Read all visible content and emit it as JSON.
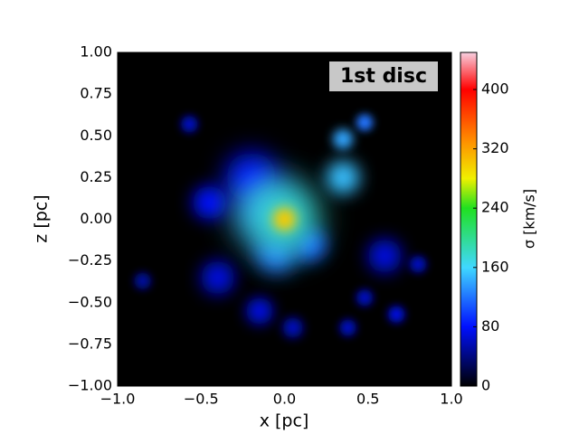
{
  "chart_data": {
    "type": "heatmap",
    "annotation": "1st disc",
    "xlabel": "x [pc]",
    "ylabel": "z [pc]",
    "colorbar_label": "σ [km/s]",
    "xlim": [
      -1,
      1
    ],
    "ylim": [
      -1,
      1
    ],
    "xticks": [
      {
        "value": -1,
        "label": "−1.0"
      },
      {
        "value": -0.5,
        "label": "−0.5"
      },
      {
        "value": 0,
        "label": "0.0"
      },
      {
        "value": 0.5,
        "label": "0.5"
      },
      {
        "value": 1,
        "label": "1.0"
      }
    ],
    "yticks": [
      {
        "value": -1,
        "label": "−1.00"
      },
      {
        "value": -0.75,
        "label": "−0.75"
      },
      {
        "value": -0.5,
        "label": "−0.50"
      },
      {
        "value": -0.25,
        "label": "−0.25"
      },
      {
        "value": 0,
        "label": "0.00"
      },
      {
        "value": 0.25,
        "label": "0.25"
      },
      {
        "value": 0.5,
        "label": "0.50"
      },
      {
        "value": 0.75,
        "label": "0.75"
      },
      {
        "value": 1,
        "label": "1.00"
      }
    ],
    "clim": [
      0,
      450
    ],
    "cticks": [
      0,
      80,
      160,
      240,
      320,
      400
    ],
    "colorscale": [
      [
        0,
        "#000000"
      ],
      [
        80,
        "#0010ff"
      ],
      [
        160,
        "#40d8ff"
      ],
      [
        240,
        "#20e020"
      ],
      [
        280,
        "#f0f000"
      ],
      [
        330,
        "#ff9000"
      ],
      [
        400,
        "#ff0000"
      ],
      [
        450,
        "#f8d0e0"
      ]
    ],
    "background": "#000000",
    "x": [
      -0.85,
      0.8,
      -0.57,
      0.48,
      0.38,
      0.05,
      0.67,
      0.6,
      -0.15,
      -0.4,
      -0.2,
      -0.45,
      0.15,
      0.48,
      -0.05,
      0.35,
      -0.1,
      0.35,
      0.0,
      0.0
    ],
    "y": [
      -0.37,
      -0.27,
      0.57,
      -0.47,
      -0.65,
      -0.65,
      -0.57,
      -0.22,
      -0.55,
      -0.35,
      0.25,
      0.1,
      -0.15,
      0.58,
      -0.2,
      0.48,
      0.05,
      0.25,
      0.0,
      0.0
    ],
    "values": [
      50,
      60,
      60,
      60,
      60,
      60,
      70,
      70,
      70,
      70,
      80,
      80,
      110,
      120,
      120,
      140,
      140,
      150,
      180,
      300
    ],
    "sizes": [
      0.05,
      0.05,
      0.05,
      0.05,
      0.05,
      0.06,
      0.05,
      0.1,
      0.08,
      0.1,
      0.15,
      0.1,
      0.1,
      0.05,
      0.12,
      0.06,
      0.2,
      0.1,
      0.2,
      0.07
    ]
  }
}
